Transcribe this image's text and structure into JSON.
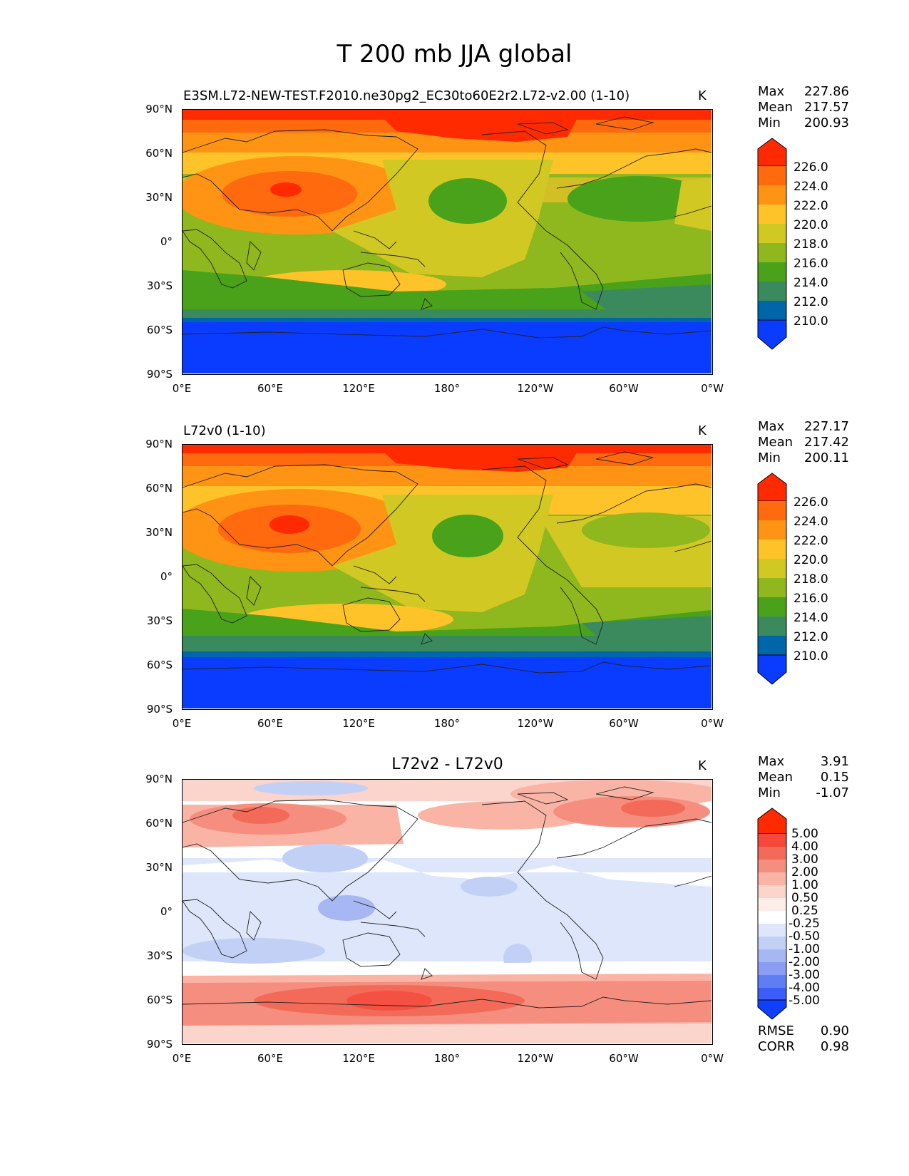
{
  "figure_title": "T 200 mb JJA global",
  "axes": {
    "y_ticks": [
      "90°N",
      "60°N",
      "30°N",
      "0°",
      "30°S",
      "60°S",
      "90°S"
    ],
    "x_ticks": [
      "0°E",
      "60°E",
      "120°E",
      "180°",
      "120°W",
      "60°W",
      "0°W"
    ]
  },
  "panels": [
    {
      "title": "E3SM.L72-NEW-TEST.F2010.ne30pg2_EC30to60E2r2.L72-v2.00 (1-10)",
      "units": "K",
      "stats": [
        {
          "label": "Max",
          "value": "227.86"
        },
        {
          "label": "Mean",
          "value": "217.57"
        },
        {
          "label": "Min",
          "value": "200.93"
        }
      ],
      "colorbar": {
        "labels": [
          "226.0",
          "224.0",
          "222.0",
          "220.0",
          "218.0",
          "216.0",
          "214.0",
          "212.0",
          "210.0"
        ],
        "colors": [
          "#ff2a00",
          "#ff6a0f",
          "#ff9414",
          "#ffc32a",
          "#d2c823",
          "#8fb71e",
          "#4aa21a",
          "#3a8a5e",
          "#0066aa",
          "#0a3cff"
        ]
      }
    },
    {
      "title": "L72v0 (1-10)",
      "units": "K",
      "stats": [
        {
          "label": "Max",
          "value": "227.17"
        },
        {
          "label": "Mean",
          "value": "217.42"
        },
        {
          "label": "Min",
          "value": "200.11"
        }
      ],
      "colorbar": {
        "labels": [
          "226.0",
          "224.0",
          "222.0",
          "220.0",
          "218.0",
          "216.0",
          "214.0",
          "212.0",
          "210.0"
        ],
        "colors": [
          "#ff2a00",
          "#ff6a0f",
          "#ff9414",
          "#ffc32a",
          "#d2c823",
          "#8fb71e",
          "#4aa21a",
          "#3a8a5e",
          "#0066aa",
          "#0a3cff"
        ]
      }
    },
    {
      "title": "L72v2 - L72v0",
      "units": "K",
      "stats": [
        {
          "label": "Max",
          "value": "3.91"
        },
        {
          "label": "Mean",
          "value": "0.15"
        },
        {
          "label": "Min",
          "value": "-1.07"
        }
      ],
      "colorbar": {
        "labels": [
          "5.00",
          "4.00",
          "3.00",
          "2.00",
          "1.00",
          "0.50",
          "0.25",
          "-0.25",
          "-0.50",
          "-1.00",
          "-2.00",
          "-3.00",
          "-4.00",
          "-5.00"
        ],
        "colors": [
          "#ff2a00",
          "#f5473a",
          "#f46a58",
          "#f58e7e",
          "#f9b4a6",
          "#fbd4cc",
          "#fdeeea",
          "#ffffff",
          "#dde6fb",
          "#c3d0f6",
          "#a6b7f3",
          "#8a9df2",
          "#5f7ef4",
          "#3b5ef8",
          "#1040ff"
        ]
      },
      "error_stats": [
        {
          "label": "RMSE",
          "value": "0.90"
        },
        {
          "label": "CORR",
          "value": "0.98"
        }
      ]
    }
  ]
}
